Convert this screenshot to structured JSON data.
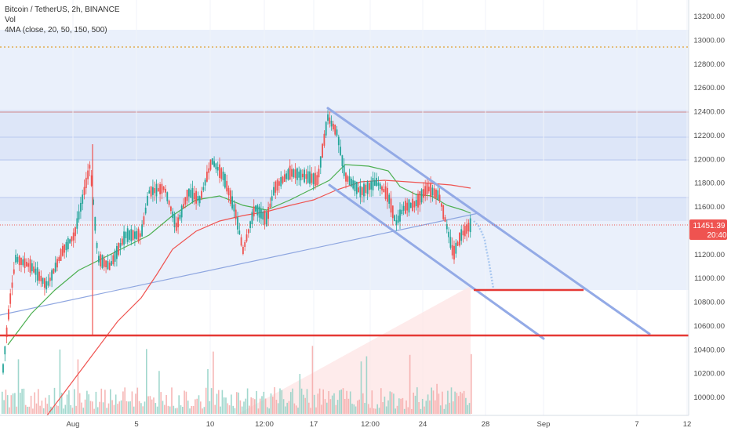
{
  "header": {
    "symbol_line": "Bitcoin / TetherUS, 2h, BINANCE",
    "volume_label": "Vol",
    "ma_label": "4MA (close, 20, 50, 150, 500)"
  },
  "price_axis": {
    "ticks": [
      "13200.00",
      "13000.00",
      "12800.00",
      "12600.00",
      "12400.00",
      "12200.00",
      "12000.00",
      "11800.00",
      "11600.00",
      "11400.00",
      "11200.00",
      "11000.00",
      "10800.00",
      "10600.00",
      "10400.00",
      "10200.00",
      "10000.00"
    ],
    "current_price": "11451.39",
    "countdown": "20:40"
  },
  "time_axis": {
    "labels": [
      "Aug",
      "5",
      "10",
      "12:00",
      "17",
      "12:00",
      "24",
      "28",
      "Sep",
      "7",
      "12"
    ]
  },
  "chart_data": {
    "type": "candlestick",
    "symbol": "Bitcoin / TetherUS",
    "interval": "2h",
    "exchange": "BINANCE",
    "ylim": [
      9850,
      13320
    ],
    "current_price": 11451.39,
    "price_series_approx": {
      "x": [
        "Jul 29",
        "Jul 31",
        "Aug 2",
        "Aug 4",
        "Aug 6",
        "Aug 8",
        "Aug 10",
        "Aug 12",
        "Aug 14",
        "Aug 16",
        "Aug 17",
        "Aug 19",
        "Aug 21",
        "Aug 23",
        "Aug 24",
        "Aug 25",
        "Aug 26",
        "Aug 27"
      ],
      "close": [
        10900,
        11150,
        11400,
        11550,
        11250,
        11650,
        11800,
        11500,
        11550,
        11800,
        12400,
        11800,
        11600,
        11400,
        11700,
        11600,
        11200,
        11451
      ]
    },
    "moving_averages": [
      {
        "period": 20,
        "color": "#26a69a"
      },
      {
        "period": 50,
        "color": "#4caf50"
      },
      {
        "period": 150,
        "color": "#ef5350"
      },
      {
        "period": 500,
        "color": "#ff9800"
      }
    ],
    "horizontal_levels": [
      {
        "price": 10520,
        "color": "#e53935",
        "style": "solid"
      },
      {
        "price": 10900,
        "color": "#e53935",
        "style": "solid",
        "segment": "short"
      },
      {
        "price": 12940,
        "color": "#f0a030",
        "style": "dotted"
      },
      {
        "price": 11451.39,
        "color": "#ef5350",
        "style": "dotted"
      }
    ],
    "descending_channel": {
      "upper": [
        {
          "date": "Aug 17",
          "price": 12440
        },
        {
          "date": "Sep 8",
          "price": 10530
        }
      ],
      "lower": [
        {
          "date": "Aug 17",
          "price": 11790
        },
        {
          "date": "Sep 1",
          "price": 10500
        }
      ],
      "color": "#90a4e8"
    },
    "colors": {
      "up": "#26a69a",
      "down": "#ef5350",
      "zone": "#dde6f8",
      "price_tag": "#ef5350"
    }
  }
}
